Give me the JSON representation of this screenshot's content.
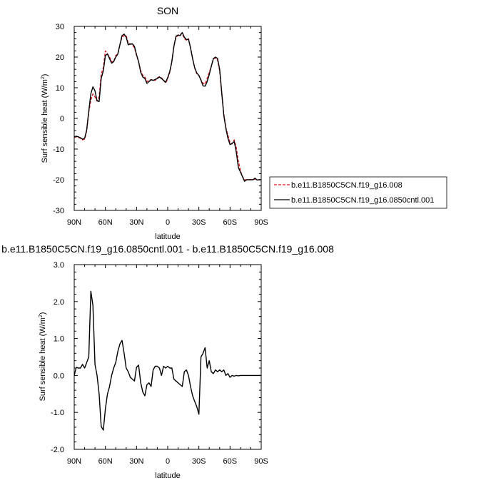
{
  "chart_data": [
    {
      "type": "line",
      "title": "SON",
      "xlabel": "latitude",
      "ylabel": "Surf sensible heat (W/m²)",
      "ylabel_main": "Surf sensible heat (W/m",
      "ylabel_sup": "2",
      "ylabel_close": ")",
      "xlim": [
        90,
        -90
      ],
      "ylim": [
        -30,
        30
      ],
      "xticks": [
        90,
        60,
        30,
        0,
        -30,
        -60,
        -90
      ],
      "xtick_labels": [
        "90N",
        "60N",
        "30N",
        "0",
        "30S",
        "60S",
        "90S"
      ],
      "yticks": [
        -30,
        -20,
        -10,
        0,
        10,
        20,
        30
      ],
      "ytick_labels": [
        "-30",
        "-20",
        "-10",
        "0",
        "10",
        "20",
        "30"
      ],
      "legend_position": "right, outside plot",
      "series": [
        {
          "name": "b.e11.B1850C5CN.f19_g16.008",
          "color": "#e0141e",
          "style": "dashed",
          "x": [
            90,
            88,
            86,
            84,
            82,
            80,
            78,
            76,
            74,
            72,
            70,
            68,
            66,
            64,
            62,
            60,
            58,
            56,
            54,
            52,
            50,
            48,
            46,
            44,
            42,
            40,
            38,
            36,
            34,
            32,
            30,
            28,
            26,
            24,
            22,
            20,
            18,
            16,
            14,
            12,
            10,
            8,
            6,
            4,
            2,
            0,
            -2,
            -4,
            -6,
            -8,
            -10,
            -12,
            -14,
            -16,
            -18,
            -20,
            -22,
            -24,
            -26,
            -28,
            -30,
            -32,
            -34,
            -36,
            -38,
            -40,
            -42,
            -44,
            -46,
            -48,
            -50,
            -52,
            -54,
            -56,
            -58,
            -60,
            -62,
            -64,
            -66,
            -68,
            -70,
            -72,
            -74,
            -76,
            -78,
            -80,
            -82,
            -84,
            -86,
            -88,
            -90
          ],
          "values": [
            -6.2,
            -6.0,
            -6.2,
            -6.5,
            -7.0,
            -6.8,
            -4.0,
            2.0,
            6.0,
            8.0,
            7.0,
            5.7,
            7.0,
            14.5,
            16.5,
            22.0,
            21.0,
            20.0,
            18.5,
            18.5,
            20.5,
            21.0,
            24.0,
            26.5,
            27.0,
            27.0,
            24.5,
            24.2,
            24.0,
            23.0,
            20.5,
            18.5,
            15.5,
            14.0,
            13.5,
            12.0,
            12.5,
            12.6,
            12.6,
            12.4,
            13.2,
            13.6,
            13.2,
            12.5,
            11.5,
            13.0,
            15.0,
            18.5,
            23.5,
            26.5,
            27.0,
            27.3,
            27.8,
            26.0,
            25.5,
            26.0,
            23.0,
            19.5,
            16.5,
            14.5,
            14.0,
            12.5,
            11.5,
            11.2,
            13.0,
            15.0,
            17.0,
            19.5,
            19.6,
            19.0,
            15.5,
            8.0,
            1.5,
            -3.0,
            -5.5,
            -7.8,
            -8.3,
            -7.0,
            -9.5,
            -14.0,
            -17.0,
            -19.0,
            -20.0,
            -20.0,
            -20.0,
            -20.0,
            -20.0,
            -19.8,
            -20.1,
            -20.0,
            -20.0
          ]
        },
        {
          "name": "b.e11.B1850C5CN.f19_g16.0850cntl.001",
          "color": "#000000",
          "style": "solid",
          "x": [
            90,
            88,
            86,
            84,
            82,
            80,
            78,
            76,
            74,
            72,
            70,
            68,
            66,
            64,
            62,
            60,
            58,
            56,
            54,
            52,
            50,
            48,
            46,
            44,
            42,
            40,
            38,
            36,
            34,
            32,
            30,
            28,
            26,
            24,
            22,
            20,
            18,
            16,
            14,
            12,
            10,
            8,
            6,
            4,
            2,
            0,
            -2,
            -4,
            -6,
            -8,
            -10,
            -12,
            -14,
            -16,
            -18,
            -20,
            -22,
            -24,
            -26,
            -28,
            -30,
            -32,
            -34,
            -36,
            -38,
            -40,
            -42,
            -44,
            -46,
            -48,
            -50,
            -52,
            -54,
            -56,
            -58,
            -60,
            -62,
            -64,
            -66,
            -68,
            -70,
            -72,
            -74,
            -76,
            -78,
            -80,
            -82,
            -84,
            -86,
            -88,
            -90
          ],
          "values": [
            -6.0,
            -5.8,
            -6.0,
            -6.3,
            -6.8,
            -6.5,
            -3.7,
            2.4,
            8.0,
            10.3,
            9.0,
            5.7,
            5.5,
            13.0,
            15.5,
            20.5,
            21.0,
            19.5,
            18.0,
            18.5,
            20.0,
            21.0,
            24.0,
            27.0,
            27.5,
            26.5,
            24.0,
            24.3,
            24.3,
            23.5,
            20.8,
            18.5,
            15.0,
            13.5,
            13.0,
            11.4,
            12.0,
            12.6,
            12.4,
            12.7,
            13.0,
            13.5,
            13.0,
            12.4,
            11.8,
            13.3,
            15.3,
            18.5,
            23.5,
            26.8,
            27.2,
            27.0,
            28.0,
            26.5,
            25.7,
            25.8,
            23.0,
            19.5,
            16.5,
            14.8,
            14.0,
            12.5,
            10.6,
            10.5,
            12.0,
            14.3,
            17.0,
            19.5,
            20.0,
            19.5,
            16.0,
            8.5,
            1.0,
            -3.3,
            -6.5,
            -8.5,
            -8.2,
            -7.5,
            -11.0,
            -16.0,
            -17.5,
            -19.0,
            -20.5,
            -20.0,
            -20.0,
            -20.0,
            -20.0,
            -19.5,
            -20.1,
            -20.0,
            -20.0
          ]
        }
      ]
    },
    {
      "type": "line",
      "title": "b.e11.B1850C5CN.f19_g16.0850cntl.001 - b.e11.B1850C5CN.f19_g16.008",
      "xlabel": "latitude",
      "ylabel": "Surf sensible heat (W/m²)",
      "ylabel_main": "Surf sensible heat (W/m",
      "ylabel_sup": "2",
      "ylabel_close": ")",
      "xlim": [
        90,
        -90
      ],
      "ylim": [
        -2.0,
        3.0
      ],
      "xticks": [
        90,
        60,
        30,
        0,
        -30,
        -60,
        -90
      ],
      "xtick_labels": [
        "90N",
        "60N",
        "30N",
        "0",
        "30S",
        "60S",
        "90S"
      ],
      "yticks": [
        -2.0,
        -1.0,
        0.0,
        1.0,
        2.0,
        3.0
      ],
      "ytick_labels": [
        "-2.0",
        "-1.0",
        "0.0",
        "1.0",
        "2.0",
        "3.0"
      ],
      "series": [
        {
          "color": "#000000",
          "style": "solid",
          "x": [
            90,
            88,
            86,
            84,
            82,
            80,
            78,
            76,
            74,
            72,
            70,
            68,
            66,
            64,
            62,
            60,
            58,
            56,
            54,
            52,
            50,
            48,
            46,
            44,
            42,
            40,
            38,
            36,
            34,
            32,
            30,
            28,
            26,
            24,
            22,
            20,
            18,
            16,
            14,
            12,
            10,
            8,
            6,
            4,
            2,
            0,
            -2,
            -4,
            -6,
            -8,
            -10,
            -12,
            -14,
            -16,
            -18,
            -20,
            -22,
            -24,
            -26,
            -28,
            -30,
            -32,
            -34,
            -36,
            -38,
            -40,
            -42,
            -44,
            -46,
            -48,
            -50,
            -52,
            -54,
            -56,
            -58,
            -60,
            -62,
            -64,
            -66,
            -68,
            -70,
            -72,
            -74,
            -76,
            -78,
            -80,
            -82,
            -84,
            -86,
            -88,
            -90
          ],
          "values": [
            0.0,
            0.22,
            0.2,
            0.2,
            0.3,
            0.2,
            0.35,
            0.5,
            2.28,
            1.9,
            0.3,
            0.0,
            -0.5,
            -1.38,
            -1.48,
            -0.9,
            -0.5,
            -0.3,
            0.0,
            0.2,
            0.35,
            0.65,
            0.85,
            0.95,
            0.6,
            0.2,
            0.1,
            -0.05,
            -0.1,
            -0.15,
            0.22,
            0.28,
            -0.2,
            -0.45,
            -0.55,
            -0.25,
            -0.2,
            -0.3,
            0.15,
            0.25,
            0.25,
            0.2,
            0.0,
            0.25,
            0.2,
            0.25,
            0.2,
            0.2,
            -0.1,
            -0.15,
            -0.2,
            -0.25,
            -0.3,
            0.1,
            0.15,
            0.0,
            -0.3,
            -0.55,
            -0.7,
            -0.85,
            -1.05,
            0.5,
            0.6,
            0.75,
            0.2,
            0.4,
            0.1,
            0.05,
            0.15,
            0.1,
            0.15,
            0.1,
            0.15,
            0.0,
            0.05,
            -0.05,
            0.0,
            -0.02,
            0.0,
            -0.01,
            0.0,
            0.0,
            0.0,
            0.0,
            0.0,
            0.0,
            0.0,
            0.0,
            0.0,
            0.0,
            0.0
          ]
        }
      ]
    }
  ]
}
